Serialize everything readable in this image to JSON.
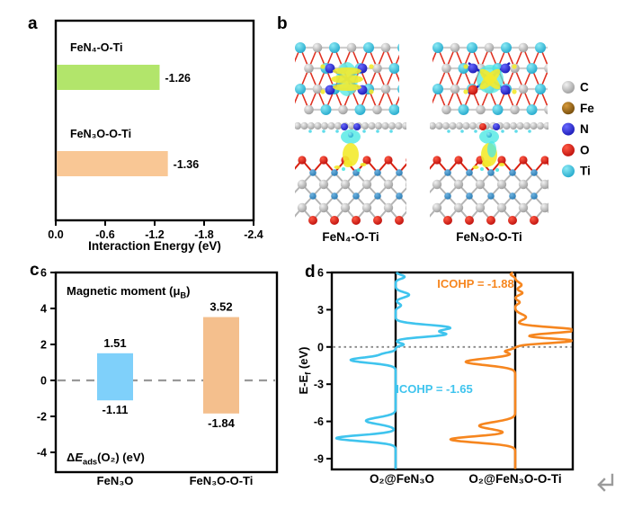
{
  "panels": {
    "a_label": "a",
    "b_label": "b",
    "c_label": "c",
    "d_label": "d"
  },
  "chart_data": [
    {
      "panel": "a",
      "type": "bar",
      "orientation": "horizontal",
      "xlabel": "Interaction Energy (eV)",
      "categories": [
        "FeN₄-O-Ti",
        "FeN₃O-O-Ti"
      ],
      "values": [
        -1.26,
        -1.36
      ],
      "value_labels": [
        "-1.26",
        "-1.36"
      ],
      "bar_colors": [
        "#b2e56b",
        "#f9c795"
      ],
      "xticks": [
        "0.0",
        "-0.6",
        "-1.2",
        "-1.8",
        "-2.4"
      ],
      "xlim": [
        0,
        -2.4
      ],
      "grid": false
    },
    {
      "panel": "c",
      "type": "bar",
      "orientation": "vertical-range",
      "title": "Magnetic moment (μ[B])",
      "bottom_label": "Δ{E}[ads](O₂) (eV)",
      "categories": [
        "FeN₃O",
        "FeN₃O-O-Ti"
      ],
      "series": [
        {
          "name": "Magnetic moment (μB)",
          "values": [
            1.51,
            3.52
          ]
        },
        {
          "name": "ΔEads(O2) (eV)",
          "values": [
            -1.11,
            -1.84
          ]
        }
      ],
      "top_value_labels": [
        "1.51",
        "3.52"
      ],
      "bottom_value_labels": [
        "-1.11",
        "-1.84"
      ],
      "bar_colors": [
        "#7fd0fa",
        "#f4bf8d"
      ],
      "yticks": [
        6,
        4,
        2,
        0,
        -2,
        -4
      ],
      "ylim": [
        -5.1,
        6
      ],
      "zero_line": "dashed-gray",
      "grid": false
    },
    {
      "panel": "d",
      "type": "line",
      "ylabel": "E-E[f] (eV)",
      "yticks": [
        6,
        3,
        0,
        -3,
        -6,
        -9
      ],
      "ylim": [
        -9.9,
        6
      ],
      "fermi_dotted_line_at": 0,
      "categories": [
        "O₂@FeN₃O",
        "O₂@FeN₃O-O-Ti"
      ],
      "series": [
        {
          "name": "O₂@FeN₃O",
          "color": "#3fc4ee",
          "icohp_label": "ICOHP = -1.65",
          "peaks_eV_amp_width": [
            [
              5.65,
              10,
              0.22
            ],
            [
              4.2,
              15,
              0.3
            ],
            [
              3.35,
              6,
              0.22
            ],
            [
              1.55,
              60,
              0.33
            ],
            [
              1.0,
              52,
              0.27
            ],
            [
              0.2,
              9,
              0.15
            ],
            [
              -0.55,
              -10,
              0.18
            ],
            [
              -1.05,
              -50,
              0.33
            ],
            [
              -5.95,
              -33,
              0.38
            ],
            [
              -7.35,
              -66,
              0.34
            ]
          ]
        },
        {
          "name": "O₂@FeN₃O-O-Ti",
          "color": "#f6861f",
          "icohp_label": "ICOHP = -1.88",
          "peaks_eV_amp_width": [
            [
              5.85,
              -5,
              0.18
            ],
            [
              5.0,
              7,
              0.28
            ],
            [
              4.35,
              8,
              0.22
            ],
            [
              3.6,
              5,
              0.2
            ],
            [
              2.4,
              12,
              0.35
            ],
            [
              1.35,
              70,
              0.32
            ],
            [
              0.5,
              64,
              0.26
            ],
            [
              -0.35,
              -11,
              0.18
            ],
            [
              -1.2,
              -55,
              0.38
            ],
            [
              -6.35,
              -40,
              0.42
            ],
            [
              -7.45,
              -72,
              0.36
            ]
          ]
        }
      ]
    }
  ],
  "panel_b": {
    "structure_labels": [
      "FeN₄-O-Ti",
      "FeN₃O-O-Ti"
    ],
    "legend": [
      {
        "element": "C",
        "color": "#aaaaaa"
      },
      {
        "element": "Fe",
        "color": "#8a5a00"
      },
      {
        "element": "N",
        "color": "#1a1acc"
      },
      {
        "element": "O",
        "color": "#dd1507"
      },
      {
        "element": "Ti",
        "color": "#27b4da"
      }
    ],
    "isosurface_colors": {
      "yellow_blob": "#f3ea2e",
      "cyan_blob": "#4de8e4"
    }
  },
  "icons": {
    "return_mark": "↵"
  }
}
